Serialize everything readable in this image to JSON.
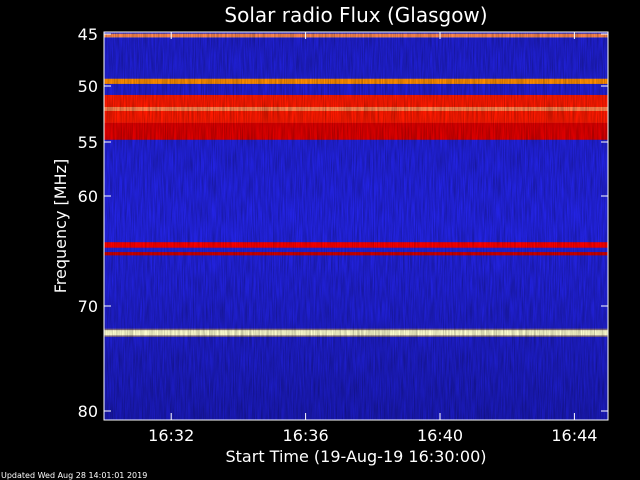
{
  "chart_data": {
    "type": "heatmap",
    "title": "Solar radio Flux (Glasgow)",
    "xlabel": "Start Time (19-Aug-19 16:30:00)",
    "ylabel": "Frequency [MHz]",
    "x_unit": "time",
    "x_range": [
      "16:30:00",
      "16:45:00"
    ],
    "x_ticks": [
      "16:32",
      "16:36",
      "16:40",
      "16:44"
    ],
    "x_tick_minutes": [
      2,
      6,
      10,
      14
    ],
    "y_range_mhz": [
      45,
      80
    ],
    "y_ticks": [
      "45",
      "50",
      "55",
      "60",
      "70",
      "80"
    ],
    "y_tick_values": [
      45,
      50,
      55,
      60,
      70,
      80
    ],
    "grid": false,
    "colormap": {
      "low": "#00007f",
      "background": "#1a1adc",
      "mid": "#ff0000",
      "high": "#ffffcc"
    },
    "bands_mhz": [
      {
        "from": 45.0,
        "to": 45.3,
        "intensity": "high",
        "color": "#ff2a00"
      },
      {
        "from": 49.3,
        "to": 49.8,
        "intensity": "mid",
        "color": "#ff8c00"
      },
      {
        "from": 50.8,
        "to": 53.3,
        "intensity": "high",
        "color": "#ff1a00"
      },
      {
        "from": 53.3,
        "to": 54.8,
        "intensity": "mid",
        "color": "#e00000"
      },
      {
        "from": 64.2,
        "to": 64.7,
        "intensity": "mid",
        "color": "#ff0000"
      },
      {
        "from": 65.1,
        "to": 65.4,
        "intensity": "mid",
        "color": "#d00000"
      },
      {
        "from": 72.3,
        "to": 72.8,
        "intensity": "peak",
        "color": "#ffffd0"
      }
    ]
  },
  "footer": {
    "updated": "Updated Wed Aug 28 14:01:01 2019"
  }
}
